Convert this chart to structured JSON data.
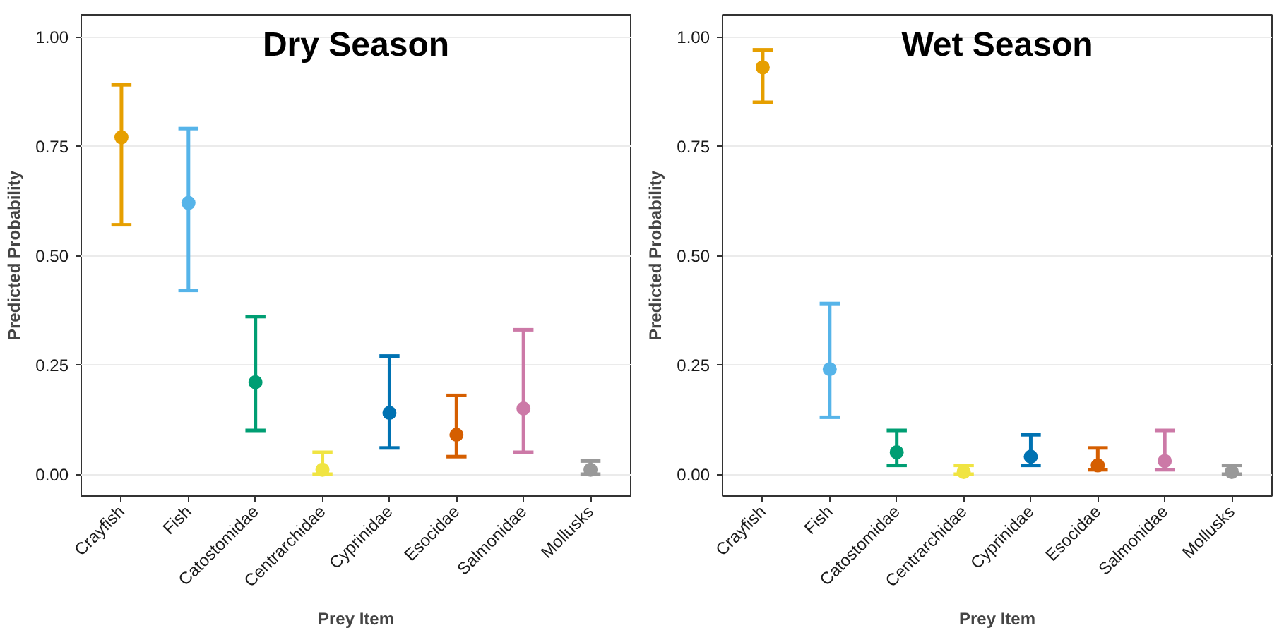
{
  "chart_data": [
    {
      "type": "scatter",
      "title": "Dry Season",
      "xlabel": "Prey Item",
      "ylabel": "Predicted Probability",
      "categories": [
        "Crayfish",
        "Fish",
        "Catostomidae",
        "Centrarchidae",
        "Cyprinidae",
        "Esocidae",
        "Salmonidae",
        "Mollusks"
      ],
      "values": [
        0.77,
        0.62,
        0.21,
        0.01,
        0.14,
        0.09,
        0.15,
        0.01
      ],
      "errors": [
        [
          0.57,
          0.89
        ],
        [
          0.42,
          0.79
        ],
        [
          0.1,
          0.36
        ],
        [
          0.0,
          0.05
        ],
        [
          0.06,
          0.27
        ],
        [
          0.04,
          0.18
        ],
        [
          0.05,
          0.33
        ],
        [
          0.0,
          0.03
        ]
      ],
      "colors": [
        "#e69f00",
        "#56b4e9",
        "#009e73",
        "#f0e442",
        "#0072b2",
        "#d55e00",
        "#cc79a7",
        "#999999"
      ],
      "ylim": [
        -0.05,
        1.05
      ],
      "yticks": [
        {
          "value": 0,
          "label": "0.00"
        },
        {
          "value": 0.25,
          "label": "0.25"
        },
        {
          "value": 0.5,
          "label": "0.50"
        },
        {
          "value": 0.75,
          "label": "0.75"
        },
        {
          "value": 1,
          "label": "1.00"
        }
      ],
      "grid": "y",
      "marker": "circle"
    },
    {
      "type": "scatter",
      "title": "Wet Season",
      "xlabel": "Prey Item",
      "ylabel": "Predicted Probability",
      "categories": [
        "Crayfish",
        "Fish",
        "Catostomidae",
        "Centrarchidae",
        "Cyprinidae",
        "Esocidae",
        "Salmonidae",
        "Mollusks"
      ],
      "values": [
        0.93,
        0.24,
        0.05,
        0.005,
        0.04,
        0.02,
        0.03,
        0.005
      ],
      "errors": [
        [
          0.85,
          0.97
        ],
        [
          0.13,
          0.39
        ],
        [
          0.02,
          0.1
        ],
        [
          0.0,
          0.02
        ],
        [
          0.02,
          0.09
        ],
        [
          0.01,
          0.06
        ],
        [
          0.01,
          0.1
        ],
        [
          0.0,
          0.02
        ]
      ],
      "colors": [
        "#e69f00",
        "#56b4e9",
        "#009e73",
        "#f0e442",
        "#0072b2",
        "#d55e00",
        "#cc79a7",
        "#999999"
      ],
      "ylim": [
        -0.05,
        1.05
      ],
      "yticks": [
        {
          "value": 0,
          "label": "0.00"
        },
        {
          "value": 0.25,
          "label": "0.25"
        },
        {
          "value": 0.5,
          "label": "0.50"
        },
        {
          "value": 0.75,
          "label": "0.75"
        },
        {
          "value": 1,
          "label": "1.00"
        }
      ],
      "grid": "y",
      "marker": "circle"
    }
  ]
}
